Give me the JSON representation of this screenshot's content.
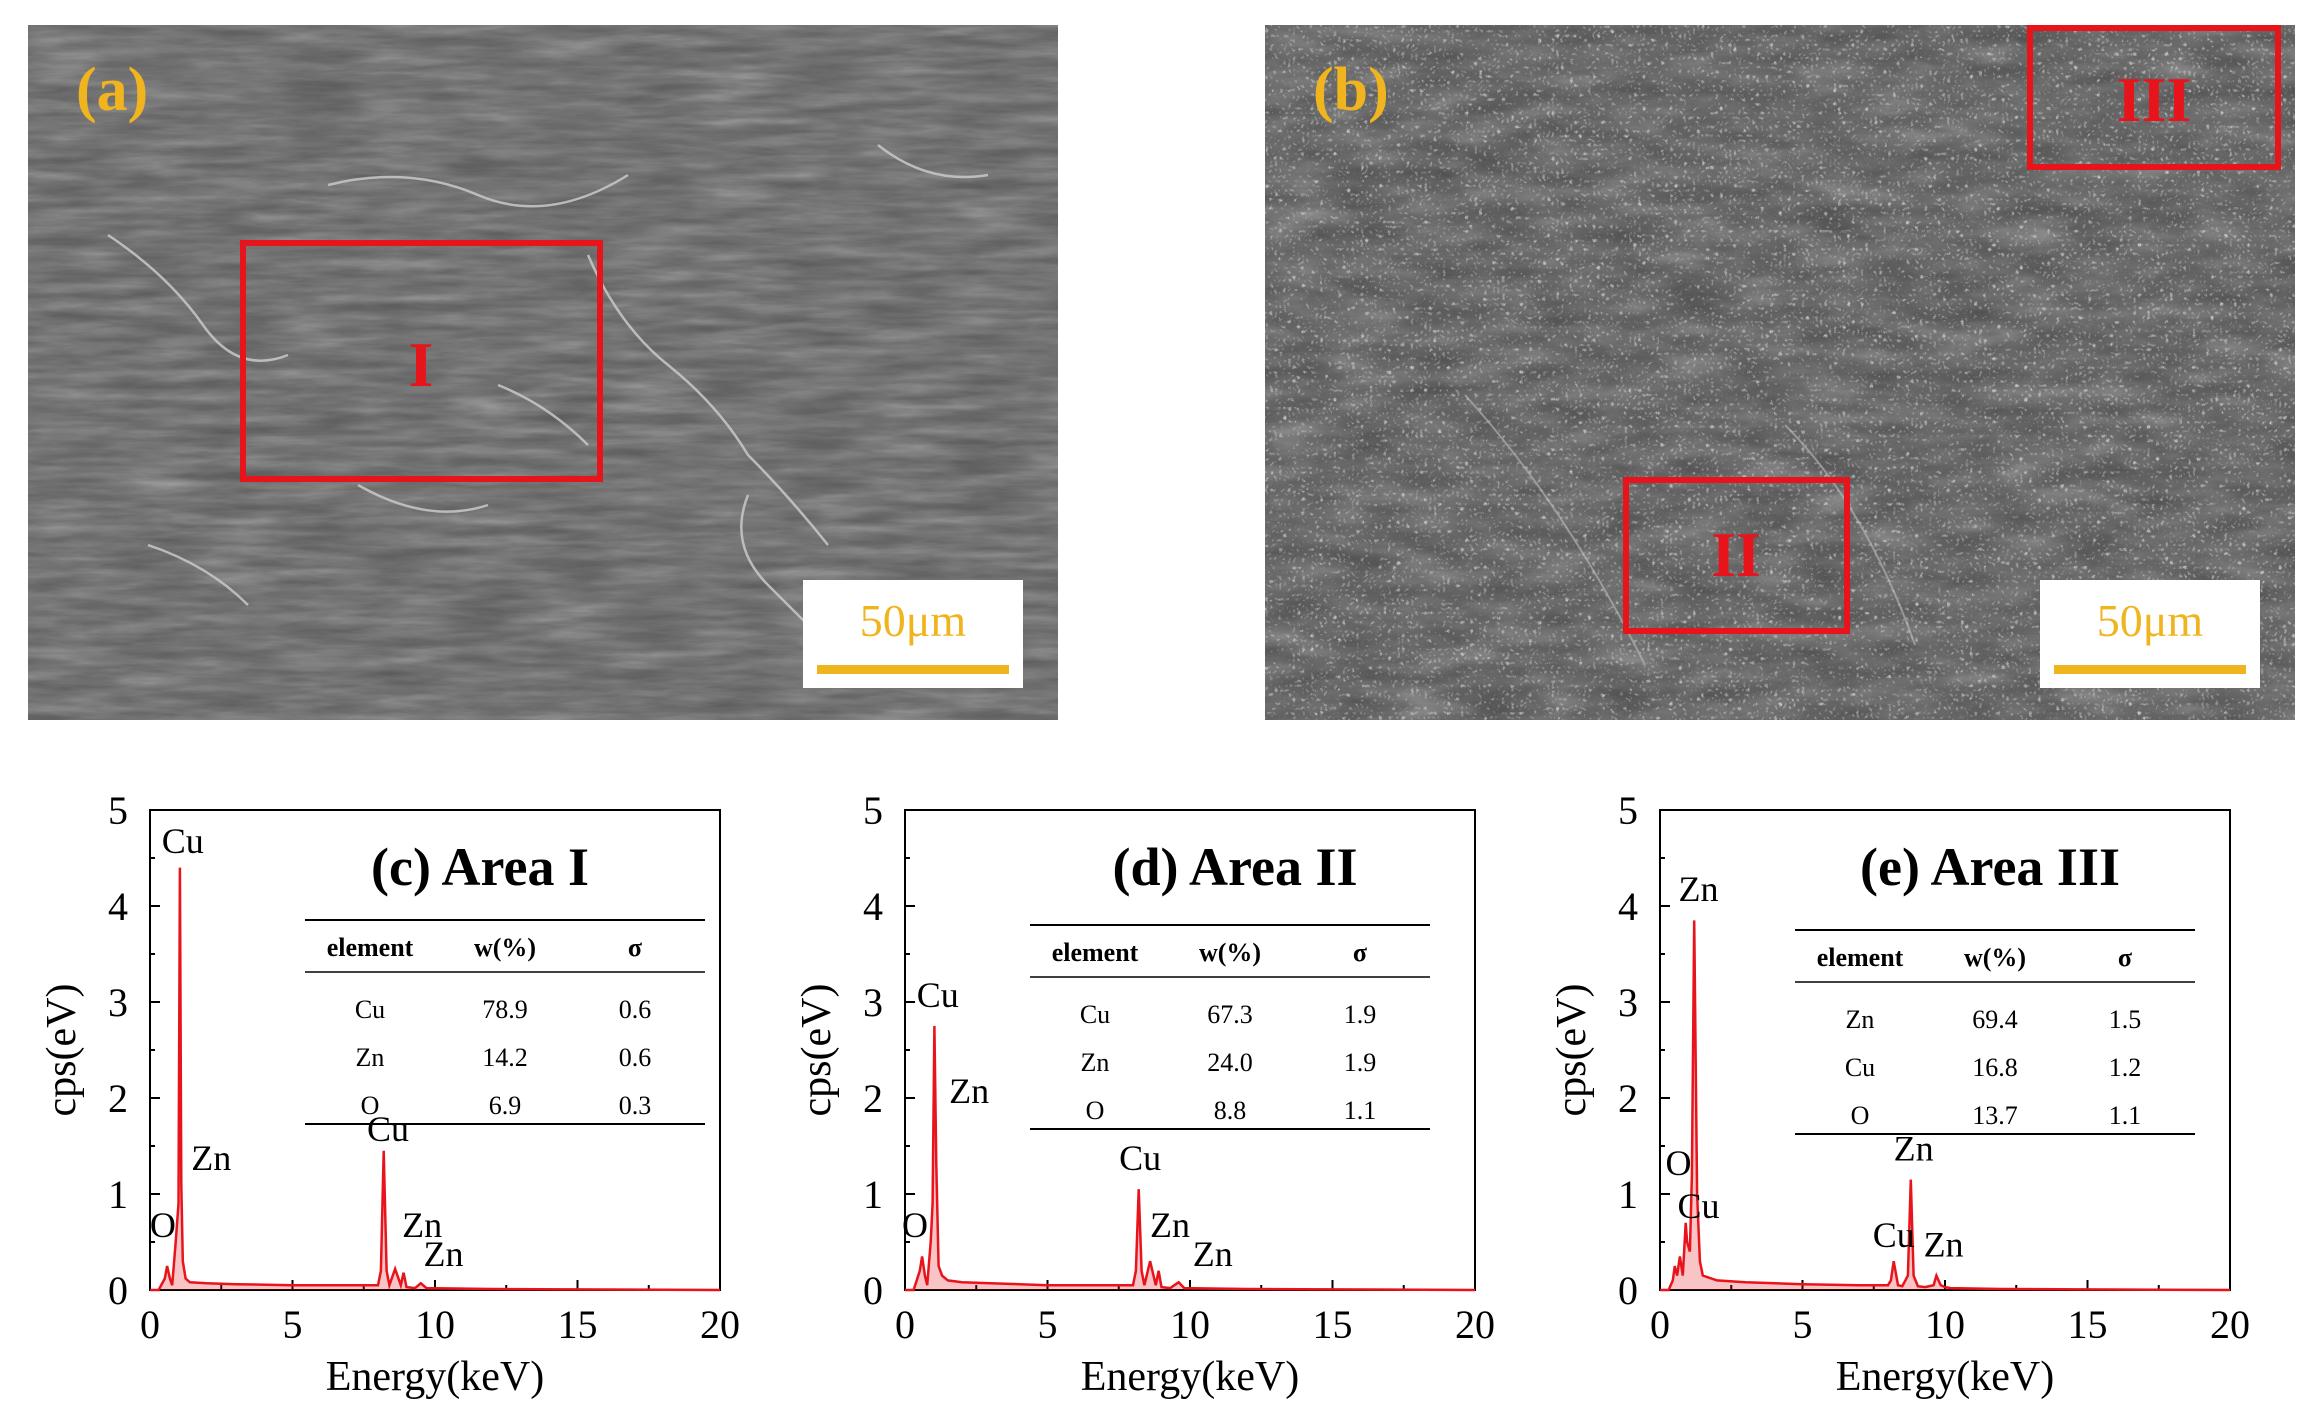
{
  "sem_images": [
    {
      "letter": "(a)",
      "scale": "50μm",
      "regions": [
        {
          "label": "I"
        }
      ]
    },
    {
      "letter": "(b)",
      "scale": "50μm",
      "regions": [
        {
          "label": "III"
        },
        {
          "label": "II"
        }
      ]
    }
  ],
  "chart_data": [
    {
      "type": "line",
      "title": "(c)  Area I",
      "xlabel": "Energy(keV)",
      "ylabel": "cps(eV)",
      "xlim": [
        0,
        20
      ],
      "ylim": [
        0,
        5
      ],
      "xticks": [
        "0",
        "5",
        "10",
        "15",
        "20"
      ],
      "yticks": [
        "0",
        "1",
        "2",
        "3",
        "4",
        "5"
      ],
      "series": [
        {
          "color": "#e8141c",
          "x": [
            0,
            0.3,
            0.52,
            0.6,
            0.7,
            0.78,
            0.9,
            1.0,
            1.05,
            1.1,
            1.15,
            1.25,
            1.4,
            2,
            3,
            5,
            7,
            8.0,
            8.1,
            8.2,
            8.3,
            8.4,
            8.6,
            8.8,
            8.9,
            9.0,
            9.3,
            9.5,
            9.7,
            12,
            20
          ],
          "y": [
            0,
            0.0,
            0.12,
            0.25,
            0.12,
            0.05,
            0.5,
            0.9,
            4.4,
            1.1,
            0.3,
            0.12,
            0.08,
            0.07,
            0.06,
            0.05,
            0.05,
            0.05,
            0.2,
            1.45,
            0.2,
            0.05,
            0.22,
            0.05,
            0.18,
            0.03,
            0.02,
            0.07,
            0.02,
            0.01,
            0.0
          ]
        }
      ],
      "peak_labels": [
        {
          "text": "Cu",
          "x": 1.15,
          "y": 4.55
        },
        {
          "text": "Zn",
          "x": 2.15,
          "y": 1.25
        },
        {
          "text": "O",
          "x": 0.45,
          "y": 0.55
        },
        {
          "text": "Cu",
          "x": 8.35,
          "y": 1.55
        },
        {
          "text": "Zn",
          "x": 9.55,
          "y": 0.55
        },
        {
          "text": "Zn",
          "x": 10.3,
          "y": 0.25
        }
      ],
      "table": {
        "headers": [
          "element",
          "w(%)",
          "σ"
        ],
        "rows": [
          [
            "Cu",
            "78.9",
            "0.6"
          ],
          [
            "Zn",
            "14.2",
            "0.6"
          ],
          [
            "O",
            "6.9",
            "0.3"
          ]
        ]
      }
    },
    {
      "type": "line",
      "title": "(d)  Area II",
      "xlabel": "Energy(keV)",
      "ylabel": "cps(eV)",
      "xlim": [
        0,
        20
      ],
      "ylim": [
        0,
        5
      ],
      "xticks": [
        "0",
        "5",
        "10",
        "15",
        "20"
      ],
      "yticks": [
        "0",
        "1",
        "2",
        "3",
        "4",
        "5"
      ],
      "series": [
        {
          "color": "#e8141c",
          "x": [
            0,
            0.3,
            0.52,
            0.6,
            0.7,
            0.78,
            0.9,
            0.97,
            1.03,
            1.1,
            1.18,
            1.3,
            1.5,
            2,
            3,
            5,
            7,
            8.0,
            8.1,
            8.2,
            8.3,
            8.4,
            8.6,
            8.8,
            8.9,
            9.0,
            9.3,
            9.6,
            9.8,
            12,
            20
          ],
          "y": [
            0,
            0.0,
            0.2,
            0.35,
            0.15,
            0.05,
            0.5,
            0.9,
            2.75,
            1.3,
            0.25,
            0.15,
            0.1,
            0.08,
            0.07,
            0.05,
            0.05,
            0.05,
            0.2,
            1.05,
            0.2,
            0.05,
            0.3,
            0.05,
            0.2,
            0.03,
            0.02,
            0.08,
            0.02,
            0.01,
            0.0
          ]
        }
      ],
      "peak_labels": [
        {
          "text": "Cu",
          "x": 1.15,
          "y": 2.95
        },
        {
          "text": "Zn",
          "x": 2.25,
          "y": 1.95
        },
        {
          "text": "O",
          "x": 0.35,
          "y": 0.55
        },
        {
          "text": "Cu",
          "x": 8.25,
          "y": 1.25
        },
        {
          "text": "Zn",
          "x": 9.3,
          "y": 0.55
        },
        {
          "text": "Zn",
          "x": 10.8,
          "y": 0.25
        }
      ],
      "table": {
        "headers": [
          "element",
          "w(%)",
          "σ"
        ],
        "rows": [
          [
            "Cu",
            "67.3",
            "1.9"
          ],
          [
            "Zn",
            "24.0",
            "1.9"
          ],
          [
            "O",
            "8.8",
            "1.1"
          ]
        ]
      }
    },
    {
      "type": "line",
      "title": "(e)  Area III",
      "xlabel": "Energy(keV)",
      "ylabel": "cps(eV)",
      "xlim": [
        0,
        20
      ],
      "ylim": [
        0,
        5
      ],
      "xticks": [
        "0",
        "5",
        "10",
        "15",
        "20"
      ],
      "yticks": [
        "0",
        "1",
        "2",
        "3",
        "4",
        "5"
      ],
      "series": [
        {
          "color": "#e8141c",
          "x": [
            0,
            0.3,
            0.45,
            0.52,
            0.6,
            0.7,
            0.8,
            0.9,
            0.95,
            1.05,
            1.12,
            1.2,
            1.3,
            1.4,
            1.5,
            2,
            3,
            5,
            7,
            8.0,
            8.1,
            8.2,
            8.35,
            8.5,
            8.7,
            8.8,
            8.9,
            9.05,
            9.3,
            9.6,
            9.7,
            9.85,
            10.0,
            10.2,
            12,
            20
          ],
          "y": [
            0,
            0.0,
            0.1,
            0.25,
            0.15,
            0.35,
            0.15,
            0.7,
            0.5,
            0.4,
            1.2,
            3.85,
            1.0,
            0.3,
            0.15,
            0.1,
            0.08,
            0.06,
            0.05,
            0.05,
            0.1,
            0.3,
            0.05,
            0.04,
            0.15,
            1.15,
            0.15,
            0.04,
            0.03,
            0.05,
            0.15,
            0.05,
            0.03,
            0.02,
            0.01,
            0.0
          ]
        }
      ],
      "peak_labels": [
        {
          "text": "Zn",
          "x": 1.35,
          "y": 4.05
        },
        {
          "text": "O",
          "x": 0.65,
          "y": 1.2
        },
        {
          "text": "Cu",
          "x": 1.35,
          "y": 0.75
        },
        {
          "text": "Zn",
          "x": 8.9,
          "y": 1.35
        },
        {
          "text": "Cu",
          "x": 8.2,
          "y": 0.45
        },
        {
          "text": "Zn",
          "x": 9.95,
          "y": 0.35
        }
      ],
      "table": {
        "headers": [
          "element",
          "w(%)",
          "σ"
        ],
        "rows": [
          [
            "Zn",
            "69.4",
            "1.5"
          ],
          [
            "Cu",
            "16.8",
            "1.2"
          ],
          [
            "O",
            "13.7",
            "1.1"
          ]
        ]
      }
    }
  ]
}
